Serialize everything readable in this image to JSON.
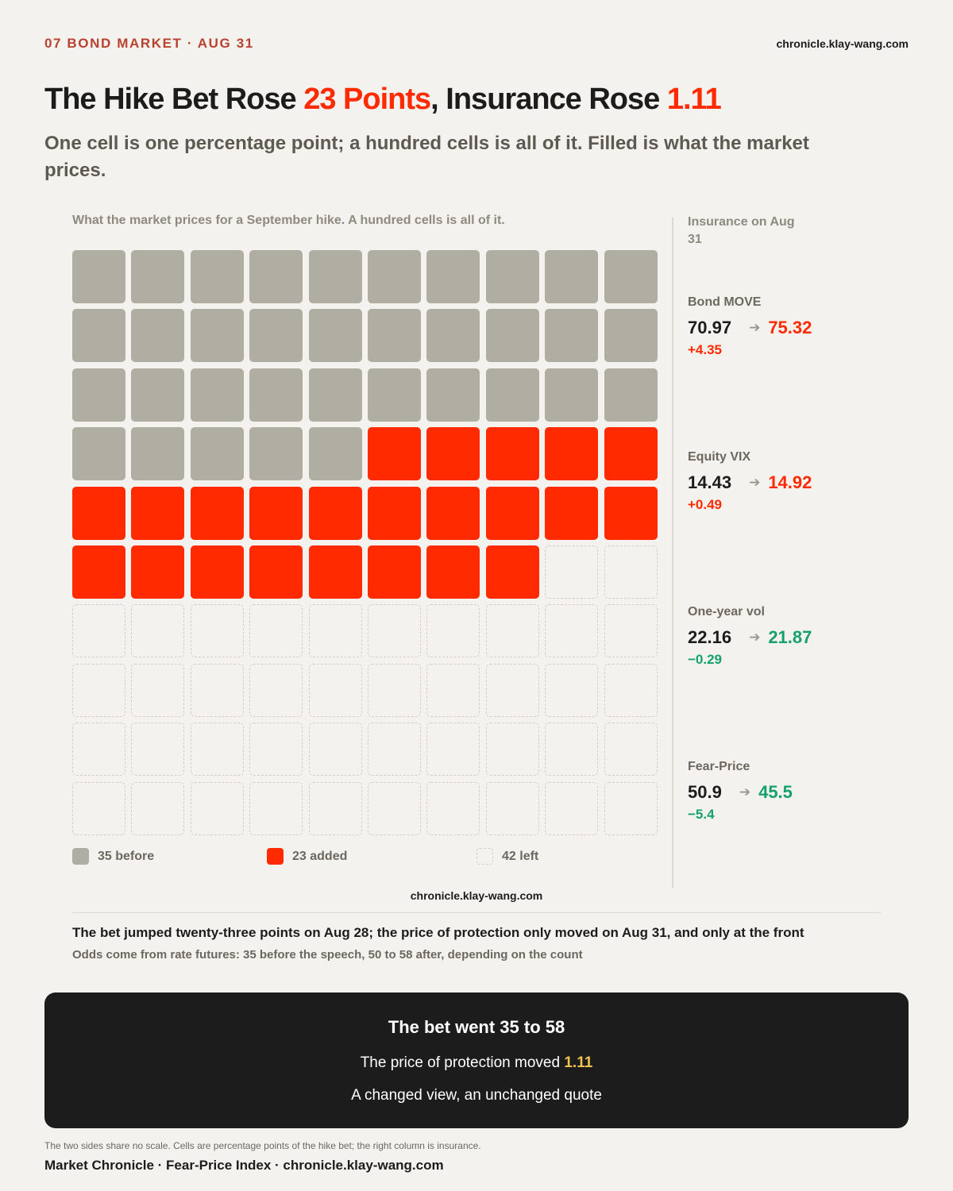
{
  "header": {
    "kicker": "07  BOND MARKET · AUG 31",
    "site": "chronicle.klay-wang.com"
  },
  "headline": {
    "part1": "The Hike Bet Rose ",
    "hl1": "23 Points",
    "part2": ", Insurance Rose ",
    "hl2": "1.11"
  },
  "subtitle": "One cell is one percentage point; a hundred cells is all of it. Filled is what the market prices.",
  "colors": {
    "before": "#b0ada2",
    "added": "#ff2a00",
    "up": "#ff2a00",
    "down": "#16a16a",
    "callout_highlight": "#f2c34c"
  },
  "chart_data": {
    "type": "waffle",
    "title": "What the market prices for a September hike. A hundred cells is all of it.",
    "grid": {
      "rows": 10,
      "cols": 10
    },
    "series": [
      {
        "name": "35 before",
        "key": "before",
        "value": 35
      },
      {
        "name": "23 added",
        "key": "added",
        "value": 23
      },
      {
        "name": "42 left",
        "key": "left",
        "value": 42
      }
    ]
  },
  "panel": {
    "title": "Insurance on Aug 31",
    "metrics": [
      {
        "name": "Bond MOVE",
        "before": "70.97",
        "after": "75.32",
        "delta": "+4.35",
        "direction": "up"
      },
      {
        "name": "Equity VIX",
        "before": "14.43",
        "after": "14.92",
        "delta": "+0.49",
        "direction": "up"
      },
      {
        "name": "One-year vol",
        "before": "22.16",
        "after": "21.87",
        "delta": "−0.29",
        "direction": "down"
      },
      {
        "name": "Fear-Price",
        "before": "50.9",
        "after": "45.5",
        "delta": "−5.4",
        "direction": "down"
      }
    ]
  },
  "chart_site": "chronicle.klay-wang.com",
  "notes": {
    "main": "The bet jumped twenty-three points on Aug 28; the price of protection only moved on Aug 31, and only at the front",
    "sub": "Odds come from rate futures: 35 before the speech, 50 to 58 after, depending on the count"
  },
  "callout": {
    "title": "The bet went 35 to 58",
    "line1_text": "The price of protection moved ",
    "line1_highlight": "1.11",
    "line2": "A changed view, an unchanged quote"
  },
  "footnote": "The two sides share no scale. Cells are percentage points of the hike bet; the right column is insurance.",
  "footer": "Market Chronicle · Fear-Price Index · chronicle.klay-wang.com"
}
